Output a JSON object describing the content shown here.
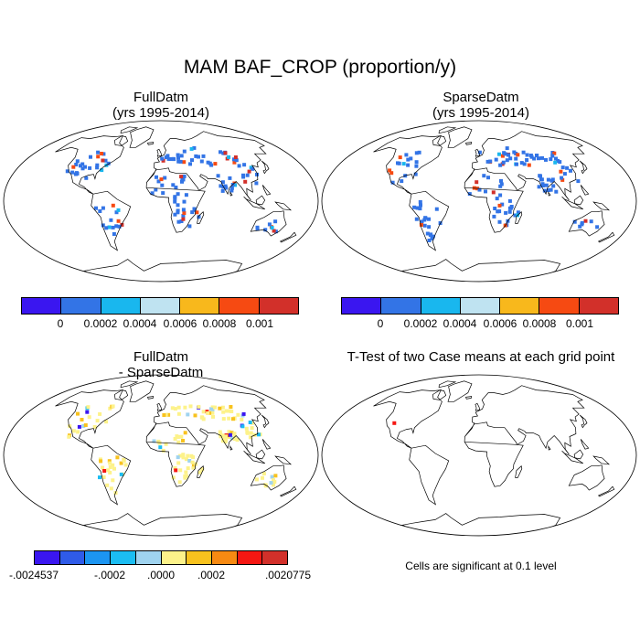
{
  "figure": {
    "title": "MAM BAF_CROP (proportion/y)"
  },
  "panels": {
    "top_left": {
      "title": "FullDatm\n(yrs 1995-2014)"
    },
    "top_right": {
      "title": "SparseDatm\n(yrs 1995-2014)"
    },
    "bottom_left": {
      "title": "FullDatm\n- SparseDatm"
    },
    "bottom_right": {
      "title": "T-Test of two Case means at each grid point"
    }
  },
  "colorbar_top": {
    "colors": [
      "#3a16f0",
      "#3374e6",
      "#19b7ee",
      "#bfe3f1",
      "#f8b81c",
      "#f64a12",
      "#d2302a"
    ],
    "labels": [
      "0",
      "0.0002",
      "0.0004",
      "0.0006",
      "0.0008",
      "0.001"
    ]
  },
  "colorbar_bottom": {
    "colors": [
      "#3a16f0",
      "#2f5be8",
      "#1c95f1",
      "#1bbdf2",
      "#9fd3ef",
      "#fdf28a",
      "#f8c21e",
      "#f78a12",
      "#f51712",
      "#d2302a"
    ],
    "labels": [
      "-.0024537",
      "-.0002",
      ".0000",
      ".0002",
      ".0020775"
    ]
  },
  "ttest_note": "Cells are significant at 0.1 level"
}
